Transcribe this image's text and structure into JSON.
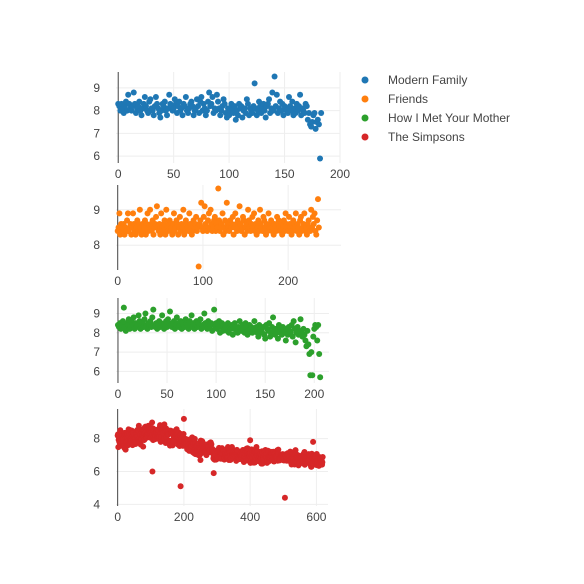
{
  "chart_data": {
    "type": "scatter",
    "grid": true,
    "legend_position": "top-right",
    "legend": [
      {
        "name": "Modern Family",
        "color": "#1f77b4"
      },
      {
        "name": "Friends",
        "color": "#ff7f0e"
      },
      {
        "name": "How I Met Your Mother",
        "color": "#2ca02c"
      },
      {
        "name": "The Simpsons",
        "color": "#d62728"
      }
    ],
    "subplots": [
      {
        "series_name": "Modern Family",
        "color": "#1f77b4",
        "xlim": [
          -2,
          200
        ],
        "ylim": [
          5.7,
          9.7
        ],
        "x_ticks": [
          0,
          50,
          100,
          150,
          200
        ],
        "y_ticks": [
          6,
          7,
          8,
          9
        ],
        "x_step": 1,
        "values": [
          8.3,
          8.2,
          8.0,
          8.3,
          8.1,
          7.9,
          8.2,
          8.4,
          8.0,
          8.7,
          8.3,
          8.1,
          8.0,
          8.2,
          8.8,
          8.3,
          7.9,
          8.1,
          8.2,
          8.4,
          8.0,
          7.8,
          8.1,
          8.3,
          8.6,
          8.2,
          8.0,
          7.9,
          8.4,
          8.5,
          8.1,
          8.0,
          7.8,
          8.2,
          8.6,
          8.3,
          8.1,
          7.9,
          7.7,
          8.0,
          8.3,
          8.2,
          8.4,
          8.0,
          7.8,
          8.1,
          8.7,
          8.3,
          8.2,
          8.0,
          8.1,
          8.5,
          8.3,
          7.9,
          8.2,
          8.4,
          8.0,
          8.1,
          7.8,
          8.3,
          8.2,
          8.6,
          8.0,
          7.9,
          8.1,
          8.3,
          8.4,
          8.2,
          7.8,
          8.0,
          8.1,
          8.5,
          8.2,
          7.9,
          8.4,
          8.6,
          8.0,
          8.3,
          8.1,
          7.8,
          8.0,
          8.4,
          8.8,
          8.2,
          8.3,
          8.6,
          7.9,
          8.1,
          8.0,
          8.7,
          8.4,
          8.1,
          7.8,
          8.0,
          8.2,
          8.5,
          8.3,
          7.9,
          7.7,
          8.1,
          7.8,
          8.0,
          8.3,
          8.1,
          7.9,
          8.2,
          7.6,
          8.0,
          7.8,
          8.3,
          8.1,
          8.2,
          7.7,
          8.0,
          8.1,
          7.9,
          8.5,
          8.3,
          7.8,
          8.1,
          8.0,
          7.9,
          8.2,
          9.2,
          8.1,
          7.8,
          8.0,
          8.4,
          8.2,
          7.9,
          8.1,
          8.3,
          8.0,
          7.7,
          8.2,
          8.3,
          8.5,
          7.9,
          8.1,
          8.8,
          8.0,
          9.5,
          8.2,
          8.7,
          7.9,
          8.1,
          8.4,
          8.0,
          8.3,
          7.8,
          8.2,
          8.1,
          8.0,
          7.9,
          8.6,
          8.2,
          8.0,
          8.4,
          7.8,
          8.1,
          7.9,
          8.3,
          8.0,
          8.2,
          8.7,
          7.8,
          8.1,
          8.0,
          7.9,
          8.3,
          8.2,
          7.6,
          7.9,
          7.4,
          7.3,
          7.5,
          7.8,
          7.9,
          7.2,
          7.5,
          7.6,
          7.4,
          5.9,
          7.9
        ]
      },
      {
        "series_name": "Friends",
        "color": "#ff7f0e",
        "xlim": [
          -2,
          262
        ],
        "ylim": [
          7.3,
          9.7
        ],
        "x_ticks": [
          0,
          100,
          200
        ],
        "y_ticks": [
          8,
          9
        ],
        "x_step": 1,
        "values": [
          8.4,
          8.5,
          8.9,
          8.3,
          8.6,
          8.4,
          8.5,
          8.6,
          8.3,
          8.5,
          8.4,
          8.7,
          8.9,
          8.4,
          8.5,
          8.6,
          8.3,
          8.5,
          8.9,
          8.6,
          8.4,
          8.3,
          8.5,
          8.7,
          8.4,
          8.6,
          9.0,
          8.5,
          8.3,
          8.6,
          8.4,
          8.5,
          8.7,
          8.3,
          8.6,
          8.9,
          8.4,
          8.5,
          9.0,
          8.6,
          8.4,
          8.7,
          8.3,
          8.5,
          8.6,
          8.8,
          9.1,
          8.5,
          8.4,
          8.6,
          8.3,
          8.9,
          8.5,
          8.4,
          8.6,
          8.7,
          8.3,
          9.0,
          8.5,
          8.4,
          8.6,
          8.7,
          8.4,
          8.5,
          8.3,
          8.6,
          8.9,
          8.4,
          8.5,
          8.7,
          8.6,
          8.3,
          8.5,
          8.8,
          8.4,
          8.6,
          8.5,
          9.0,
          8.3,
          8.4,
          8.7,
          8.6,
          8.5,
          8.4,
          8.9,
          8.6,
          8.5,
          8.3,
          8.4,
          8.7,
          8.5,
          8.6,
          8.8,
          8.4,
          8.5,
          7.4,
          8.6,
          8.7,
          9.2,
          8.5,
          8.4,
          8.8,
          9.1,
          8.6,
          8.5,
          8.4,
          8.7,
          8.9,
          8.5,
          9.0,
          8.6,
          8.4,
          8.5,
          8.7,
          8.8,
          8.4,
          8.6,
          8.5,
          9.6,
          8.7,
          8.4,
          8.5,
          8.6,
          8.9,
          8.3,
          8.5,
          8.7,
          8.4,
          9.2,
          8.6,
          8.5,
          8.4,
          8.7,
          8.5,
          8.6,
          8.8,
          8.3,
          8.5,
          8.9,
          8.6,
          8.4,
          8.7,
          8.5,
          9.1,
          8.6,
          8.4,
          8.5,
          8.8,
          8.7,
          8.3,
          8.5,
          8.6,
          8.4,
          9.0,
          8.7,
          8.5,
          8.4,
          8.6,
          8.8,
          8.5,
          8.9,
          8.4,
          8.6,
          8.3,
          8.5,
          8.7,
          8.4,
          9.0,
          8.6,
          8.5,
          8.4,
          8.8,
          8.7,
          8.5,
          8.3,
          8.6,
          8.4,
          8.9,
          8.5,
          8.6,
          8.7,
          8.4,
          8.5,
          8.3,
          8.6,
          8.5,
          8.4,
          8.8,
          8.6,
          8.7,
          8.5,
          8.4,
          8.6,
          8.3,
          8.5,
          8.7,
          8.4,
          8.9,
          8.6,
          8.5,
          8.4,
          8.8,
          8.6,
          8.5,
          8.3,
          8.4,
          8.7,
          8.6,
          8.5,
          8.9,
          8.4,
          8.6,
          8.5,
          8.3,
          8.7,
          8.8,
          8.4,
          8.5,
          8.6,
          8.9,
          8.4,
          8.5,
          8.3,
          8.6,
          8.7,
          8.5,
          8.4,
          9.0,
          8.5,
          8.8,
          8.6,
          8.9,
          8.4,
          8.3,
          8.7,
          9.3,
          8.5
        ]
      },
      {
        "series_name": "How I Met Your Mother",
        "color": "#2ca02c",
        "xlim": [
          -2,
          215
        ],
        "ylim": [
          5.4,
          9.8
        ],
        "x_ticks": [
          0,
          50,
          100,
          150,
          200
        ],
        "y_ticks": [
          6,
          7,
          8,
          9
        ],
        "x_step": 1,
        "values": [
          8.4,
          8.3,
          8.5,
          8.2,
          8.4,
          8.6,
          9.3,
          8.3,
          8.1,
          8.5,
          8.4,
          8.7,
          8.2,
          8.3,
          8.6,
          8.4,
          8.8,
          8.2,
          8.5,
          8.3,
          8.4,
          8.9,
          8.6,
          8.2,
          8.4,
          8.5,
          8.3,
          8.7,
          9.0,
          8.4,
          8.2,
          8.5,
          8.4,
          8.6,
          8.3,
          8.8,
          9.2,
          8.4,
          8.3,
          8.5,
          8.2,
          8.4,
          8.6,
          8.3,
          8.5,
          8.9,
          8.4,
          8.2,
          8.4,
          8.6,
          8.3,
          8.7,
          8.5,
          9.1,
          8.4,
          8.3,
          8.5,
          8.6,
          8.2,
          8.4,
          8.8,
          8.5,
          8.3,
          8.4,
          8.6,
          8.2,
          8.5,
          8.4,
          8.3,
          8.7,
          8.5,
          8.4,
          8.2,
          8.6,
          8.4,
          8.9,
          8.3,
          8.5,
          8.2,
          8.4,
          8.6,
          8.3,
          8.5,
          8.4,
          8.7,
          8.2,
          8.4,
          8.3,
          9.0,
          8.5,
          8.4,
          8.2,
          8.6,
          8.3,
          8.4,
          8.5,
          8.1,
          8.4,
          9.2,
          8.3,
          8.5,
          8.2,
          8.4,
          8.6,
          8.0,
          8.3,
          8.5,
          8.1,
          8.4,
          8.2,
          8.3,
          8.1,
          8.5,
          8.0,
          8.3,
          8.2,
          8.4,
          7.9,
          8.2,
          8.5,
          8.3,
          8.1,
          8.0,
          8.3,
          8.6,
          8.2,
          8.1,
          8.4,
          8.2,
          8.0,
          8.5,
          8.3,
          7.9,
          8.1,
          8.4,
          8.2,
          8.3,
          8.0,
          8.2,
          8.6,
          8.1,
          8.3,
          8.0,
          7.8,
          8.4,
          8.2,
          8.1,
          8.0,
          8.3,
          7.9,
          7.7,
          8.4,
          8.2,
          8.1,
          8.5,
          7.8,
          8.0,
          8.3,
          8.8,
          8.1,
          7.9,
          8.2,
          8.0,
          7.7,
          8.4,
          8.1,
          8.2,
          7.9,
          8.3,
          8.1,
          8.0,
          7.6,
          8.2,
          7.9,
          8.3,
          8.1,
          8.0,
          8.4,
          7.8,
          8.6,
          8.2,
          7.5,
          8.0,
          8.3,
          7.9,
          8.1,
          8.7,
          8.0,
          7.8,
          8.2,
          7.9,
          7.6,
          7.3,
          8.1,
          7.4,
          6.9,
          5.8,
          7.0,
          5.8,
          7.8,
          8.2,
          8.4,
          8.3,
          7.6,
          8.4,
          6.9,
          5.7
        ]
      },
      {
        "series_name": "The Simpsons",
        "color": "#d62728",
        "xlim": [
          -5,
          635
        ],
        "ylim": [
          3.9,
          9.8
        ],
        "x_ticks": [
          0,
          200,
          400,
          600
        ],
        "y_ticks": [
          4,
          6,
          8
        ],
        "x_step": 1,
        "segments": [
          {
            "count": 100,
            "start": 7.9,
            "end": 8.4,
            "spread": 0.55
          },
          {
            "count": 80,
            "start": 8.4,
            "end": 8.0,
            "spread": 0.55
          },
          {
            "count": 80,
            "start": 8.0,
            "end": 7.3,
            "spread": 0.55
          },
          {
            "count": 120,
            "start": 7.3,
            "end": 7.0,
            "spread": 0.45
          },
          {
            "count": 120,
            "start": 7.0,
            "end": 6.9,
            "spread": 0.45
          },
          {
            "count": 120,
            "start": 6.9,
            "end": 6.7,
            "spread": 0.45
          }
        ],
        "outliers": [
          {
            "x": 105,
            "y": 6.0
          },
          {
            "x": 190,
            "y": 5.1
          },
          {
            "x": 290,
            "y": 5.9
          },
          {
            "x": 505,
            "y": 4.4
          },
          {
            "x": 200,
            "y": 9.2
          },
          {
            "x": 400,
            "y": 7.9
          },
          {
            "x": 590,
            "y": 7.8
          }
        ]
      }
    ]
  }
}
